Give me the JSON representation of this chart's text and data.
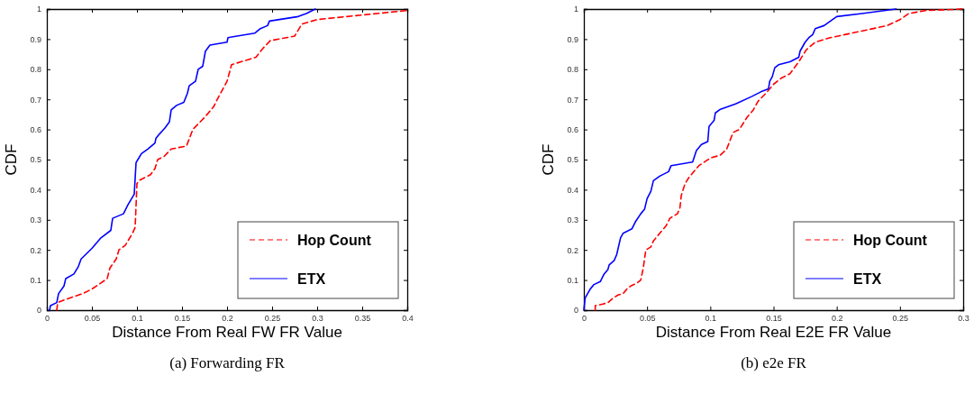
{
  "chart_data": [
    {
      "type": "line",
      "title": "(a)  Forwarding FR",
      "xlabel": "Distance From Real FW FR Value",
      "ylabel": "CDF",
      "xlim": [
        0,
        0.4
      ],
      "xticks": [
        0,
        0.05,
        0.1,
        0.15,
        0.2,
        0.25,
        0.3,
        0.35,
        0.4
      ],
      "ylim": [
        0,
        1
      ],
      "yticks": [
        0,
        0.1,
        0.2,
        0.3,
        0.4,
        0.5,
        0.6,
        0.7,
        0.8,
        0.9,
        1
      ],
      "grid": false,
      "legend": "bottom right",
      "marker": "none",
      "series": [
        {
          "name": "Hop Count",
          "color": "#ff0000",
          "line_style": "dashed",
          "x": [
            0.011,
            0.012,
            0.02,
            0.03,
            0.04,
            0.05,
            0.06,
            0.067,
            0.07,
            0.077,
            0.08,
            0.087,
            0.095,
            0.098,
            0.1,
            0.102,
            0.115,
            0.12,
            0.123,
            0.13,
            0.138,
            0.155,
            0.162,
            0.175,
            0.185,
            0.19,
            0.2,
            0.205,
            0.232,
            0.24,
            0.248,
            0.275,
            0.283,
            0.3,
            0.35,
            0.4
          ],
          "values": [
            0,
            0.025,
            0.035,
            0.045,
            0.055,
            0.07,
            0.09,
            0.105,
            0.14,
            0.17,
            0.2,
            0.215,
            0.255,
            0.275,
            0.42,
            0.43,
            0.45,
            0.47,
            0.5,
            0.51,
            0.535,
            0.545,
            0.6,
            0.64,
            0.675,
            0.705,
            0.76,
            0.815,
            0.84,
            0.87,
            0.895,
            0.91,
            0.95,
            0.965,
            0.98,
            0.995
          ]
        },
        {
          "name": "ETX",
          "color": "#0000ff",
          "line_style": "solid",
          "x": [
            0.003,
            0.004,
            0.011,
            0.013,
            0.019,
            0.021,
            0.03,
            0.035,
            0.038,
            0.05,
            0.06,
            0.071,
            0.073,
            0.085,
            0.09,
            0.097,
            0.099,
            0.101,
            0.105,
            0.112,
            0.12,
            0.121,
            0.125,
            0.131,
            0.136,
            0.138,
            0.144,
            0.152,
            0.156,
            0.158,
            0.165,
            0.168,
            0.173,
            0.176,
            0.181,
            0.2,
            0.201,
            0.231,
            0.237,
            0.245,
            0.247,
            0.279,
            0.288,
            0.298
          ],
          "values": [
            0,
            0.015,
            0.025,
            0.055,
            0.08,
            0.105,
            0.12,
            0.145,
            0.17,
            0.205,
            0.24,
            0.265,
            0.305,
            0.32,
            0.35,
            0.385,
            0.49,
            0.5,
            0.52,
            0.535,
            0.555,
            0.57,
            0.585,
            0.605,
            0.625,
            0.665,
            0.68,
            0.69,
            0.72,
            0.745,
            0.76,
            0.8,
            0.81,
            0.86,
            0.88,
            0.89,
            0.905,
            0.92,
            0.935,
            0.945,
            0.96,
            0.975,
            0.985,
            1
          ]
        }
      ]
    },
    {
      "type": "line",
      "title": "(b)  e2e FR",
      "xlabel": "Distance From Real E2E FR Value",
      "ylabel": "CDF",
      "xlim": [
        0,
        0.3
      ],
      "xticks": [
        0,
        0.05,
        0.1,
        0.15,
        0.2,
        0.25,
        0.3
      ],
      "ylim": [
        0,
        1
      ],
      "yticks": [
        0,
        0.1,
        0.2,
        0.3,
        0.4,
        0.5,
        0.6,
        0.7,
        0.8,
        0.9,
        1
      ],
      "grid": false,
      "legend": "bottom right",
      "marker": "none",
      "series": [
        {
          "name": "Hop Count",
          "color": "#ff0000",
          "line_style": "dashed",
          "x": [
            0.009,
            0.009,
            0.015,
            0.019,
            0.023,
            0.027,
            0.031,
            0.034,
            0.037,
            0.042,
            0.045,
            0.047,
            0.048,
            0.049,
            0.053,
            0.055,
            0.06,
            0.065,
            0.068,
            0.074,
            0.076,
            0.077,
            0.08,
            0.083,
            0.087,
            0.091,
            0.1,
            0.108,
            0.113,
            0.118,
            0.123,
            0.129,
            0.134,
            0.138,
            0.144,
            0.15,
            0.156,
            0.163,
            0.17,
            0.176,
            0.183,
            0.195,
            0.212,
            0.24,
            0.25,
            0.257,
            0.27,
            0.3
          ],
          "values": [
            0,
            0.015,
            0.02,
            0.025,
            0.04,
            0.05,
            0.055,
            0.07,
            0.08,
            0.09,
            0.1,
            0.14,
            0.17,
            0.2,
            0.21,
            0.23,
            0.255,
            0.28,
            0.305,
            0.32,
            0.34,
            0.38,
            0.42,
            0.44,
            0.46,
            0.48,
            0.505,
            0.515,
            0.535,
            0.59,
            0.6,
            0.64,
            0.665,
            0.695,
            0.72,
            0.75,
            0.77,
            0.785,
            0.825,
            0.865,
            0.89,
            0.905,
            0.92,
            0.945,
            0.965,
            0.985,
            0.995,
            1
          ]
        },
        {
          "name": "ETX",
          "color": "#0000ff",
          "line_style": "solid",
          "x": [
            0,
            0.001,
            0.005,
            0.008,
            0.013,
            0.016,
            0.019,
            0.02,
            0.024,
            0.026,
            0.029,
            0.031,
            0.038,
            0.041,
            0.045,
            0.048,
            0.05,
            0.053,
            0.055,
            0.06,
            0.067,
            0.069,
            0.086,
            0.089,
            0.093,
            0.098,
            0.099,
            0.103,
            0.104,
            0.108,
            0.12,
            0.133,
            0.14,
            0.146,
            0.147,
            0.149,
            0.151,
            0.154,
            0.163,
            0.17,
            0.171,
            0.175,
            0.178,
            0.181,
            0.183,
            0.19,
            0.195,
            0.2,
            0.22,
            0.247
          ],
          "values": [
            0,
            0.04,
            0.07,
            0.085,
            0.095,
            0.12,
            0.135,
            0.15,
            0.165,
            0.185,
            0.24,
            0.255,
            0.27,
            0.295,
            0.32,
            0.335,
            0.37,
            0.395,
            0.43,
            0.445,
            0.46,
            0.48,
            0.492,
            0.53,
            0.55,
            0.56,
            0.61,
            0.63,
            0.655,
            0.667,
            0.685,
            0.71,
            0.725,
            0.735,
            0.76,
            0.775,
            0.805,
            0.815,
            0.825,
            0.84,
            0.86,
            0.89,
            0.905,
            0.915,
            0.935,
            0.945,
            0.96,
            0.975,
            0.985,
            1
          ]
        }
      ]
    }
  ]
}
